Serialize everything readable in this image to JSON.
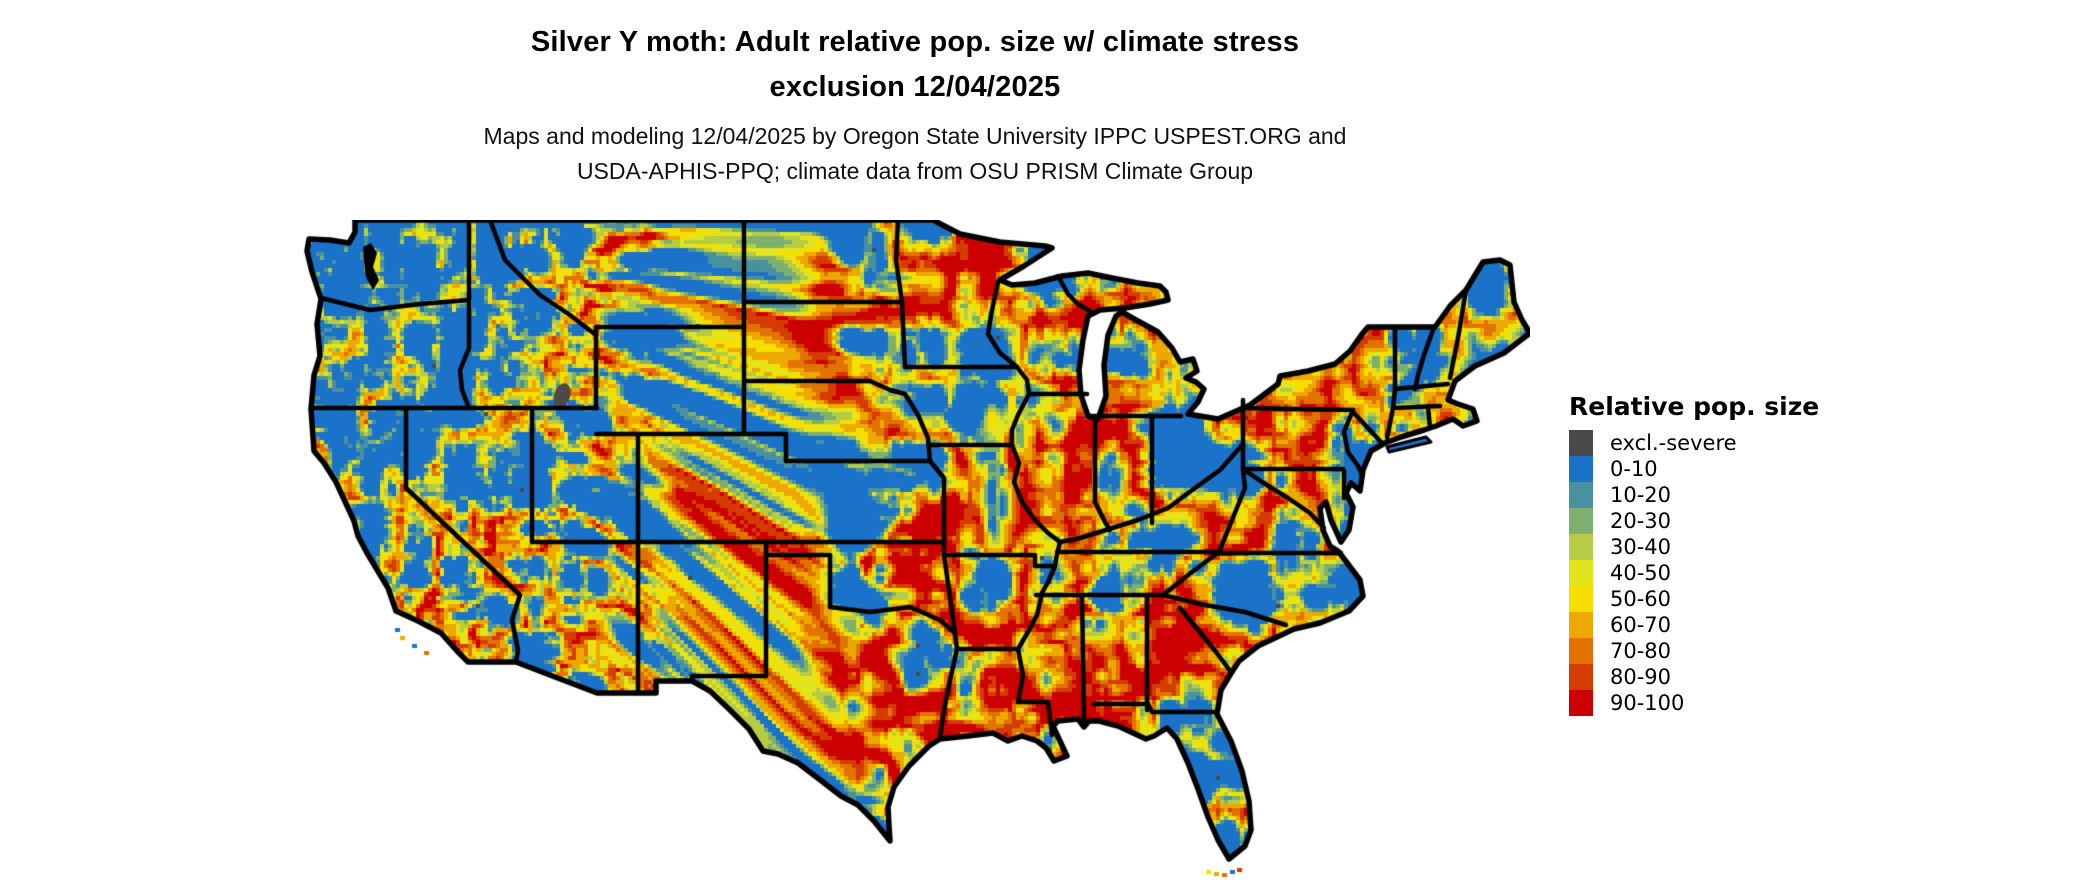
{
  "header": {
    "title_line1": "Silver Y moth: Adult relative pop. size w/ climate stress",
    "title_line2": "exclusion 12/04/2025",
    "subtitle_line1": "Maps and modeling 12/04/2025 by Oregon State University IPPC USPEST.ORG and",
    "subtitle_line2": "USDA-APHIS-PPQ; climate data from OSU PRISM Climate Group"
  },
  "legend": {
    "title": "Relative pop. size",
    "items": [
      {
        "label": "excl.-severe",
        "color": "#4a4a4a"
      },
      {
        "label": "0-10",
        "color": "#1a73c8"
      },
      {
        "label": "10-20",
        "color": "#4a91a0"
      },
      {
        "label": "20-30",
        "color": "#7db06e"
      },
      {
        "label": "30-40",
        "color": "#b5cc44"
      },
      {
        "label": "40-50",
        "color": "#e2e41c"
      },
      {
        "label": "50-60",
        "color": "#f6df00"
      },
      {
        "label": "60-70",
        "color": "#eda900"
      },
      {
        "label": "70-80",
        "color": "#e27300"
      },
      {
        "label": "80-90",
        "color": "#d43c00"
      },
      {
        "label": "90-100",
        "color": "#cc0000"
      }
    ]
  },
  "map": {
    "region": "contiguous United States",
    "style": "pixelated climate-suitability raster",
    "water_color": "#ffffff",
    "border_color": "#000000"
  }
}
